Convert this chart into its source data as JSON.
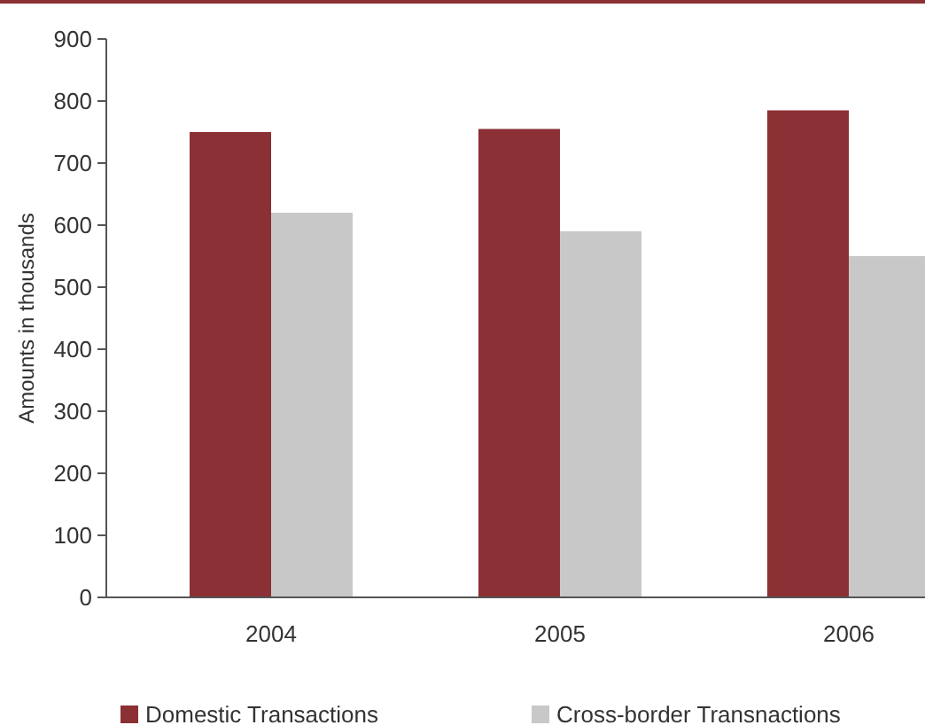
{
  "chart_data": {
    "type": "bar",
    "ylabel": "Amounts in thousands",
    "categories": [
      "2004",
      "2005",
      "2006"
    ],
    "series": [
      {
        "name": "Domestic Transactions",
        "color": "#8b3034",
        "values": [
          750,
          755,
          785
        ]
      },
      {
        "name": "Cross-border Transnactions",
        "color": "#c8c8c8",
        "values": [
          620,
          590,
          550
        ]
      }
    ],
    "ylim": [
      0,
      900
    ],
    "yticks": [
      0,
      100,
      200,
      300,
      400,
      500,
      600,
      700,
      800,
      900
    ],
    "grid": false,
    "legend": "bottom"
  }
}
